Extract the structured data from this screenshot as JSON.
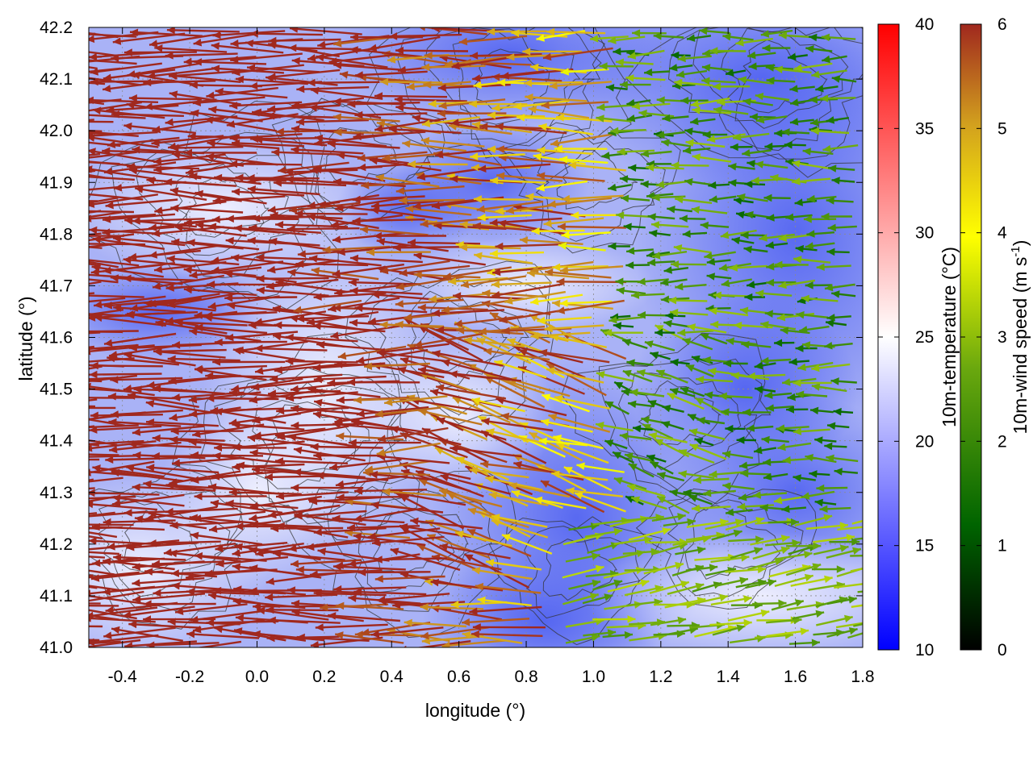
{
  "chart_data": {
    "type": "heatmap",
    "overlays": [
      "wind-vectors",
      "contour-lines"
    ],
    "xlabel": "longitude (°)",
    "ylabel": "latitude (°)",
    "xlim": [
      -0.5,
      1.8
    ],
    "ylim": [
      41.0,
      42.2
    ],
    "x_ticks": [
      "-0.4",
      "-0.2",
      "0.0",
      "0.2",
      "0.4",
      "0.6",
      "0.8",
      "1.0",
      "1.2",
      "1.4",
      "1.6",
      "1.8"
    ],
    "x_tick_values": [
      -0.4,
      -0.2,
      0.0,
      0.2,
      0.4,
      0.6,
      0.8,
      1.0,
      1.2,
      1.4,
      1.6,
      1.8
    ],
    "y_ticks": [
      "41.0",
      "41.1",
      "41.2",
      "41.3",
      "41.4",
      "41.5",
      "41.6",
      "41.7",
      "41.8",
      "41.9",
      "42.0",
      "42.1",
      "42.2"
    ],
    "y_tick_values": [
      41.0,
      41.1,
      41.2,
      41.3,
      41.4,
      41.5,
      41.6,
      41.7,
      41.8,
      41.9,
      42.0,
      42.1,
      42.2
    ],
    "grid": true,
    "temperature_colorbar": {
      "label": "10m-temperature (°C)",
      "range": [
        10,
        40
      ],
      "ticks": [
        "10",
        "15",
        "20",
        "25",
        "30",
        "35",
        "40"
      ],
      "tick_values": [
        10,
        15,
        20,
        25,
        30,
        35,
        40
      ],
      "colors": [
        "#0000ff",
        "#ffffff",
        "#ff0000"
      ]
    },
    "wind_colorbar": {
      "label_main": "10m-wind speed (m s",
      "label_sup": "-1",
      "label_end": ")",
      "range": [
        0,
        6
      ],
      "ticks": [
        "0",
        "1",
        "2",
        "3",
        "4",
        "5",
        "6"
      ],
      "tick_values": [
        0,
        1,
        2,
        3,
        4,
        5,
        6
      ],
      "colors": [
        "#000000",
        "#006400",
        "#6aa80e",
        "#ffff00",
        "#d2a01e",
        "#a0281e"
      ]
    }
  }
}
